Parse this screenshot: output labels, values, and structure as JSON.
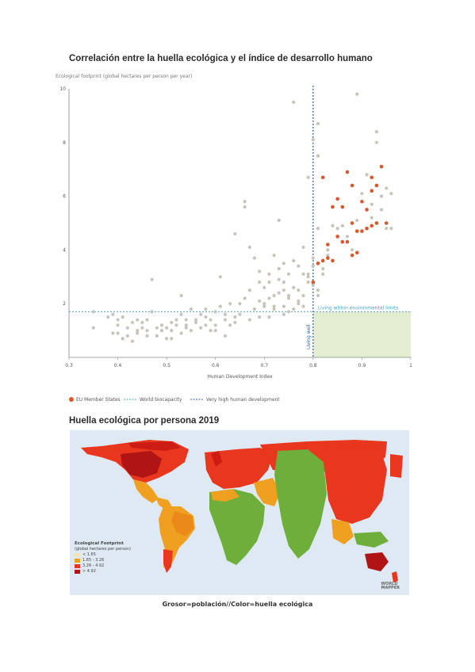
{
  "page": {
    "title_top": "Correlación entre la huella ecológica y el índice de desarrollo humano",
    "title_bottom": "Huella ecológica por persona 2019",
    "caption": "Grosor=población//Color=huella ecológica"
  },
  "chart_data": {
    "type": "scatter",
    "ylabel": "Ecological footprint (global hectares per person per year)",
    "xlabel": "Human Development Index",
    "xlim": [
      0.3,
      1.0
    ],
    "ylim": [
      0,
      10
    ],
    "xticks": [
      "0.3",
      "0.4",
      "0.5",
      "0.6",
      "0.7",
      "0.8",
      "0.9",
      "1"
    ],
    "yticks": [
      "2",
      "4",
      "6",
      "8",
      "10"
    ],
    "grid": false,
    "legend_position": "bottom",
    "legend": [
      {
        "label": "EU Member States",
        "kind": "dot",
        "color": "#d9572a"
      },
      {
        "label": "World biocapacity",
        "kind": "line-light",
        "color": "#4aa3c8"
      },
      {
        "label": "Very high human development",
        "kind": "line-dark",
        "color": "#2a5ea8"
      }
    ],
    "annotations": {
      "zone_label": "Living within environmental limits",
      "zone_label_vertical": "Living well",
      "biocapacity": 1.7,
      "hdi_threshold": 0.8
    },
    "colors": {
      "others": "#c8c3bb",
      "eu": "#d9572a",
      "zone": "#e3edd2",
      "biocap_line": "#4aa3c8",
      "hdi_line": "#2a5ea8"
    },
    "series": [
      {
        "name": "EU Member States",
        "points": [
          [
            0.8,
            2.8
          ],
          [
            0.81,
            3.5
          ],
          [
            0.82,
            3.6
          ],
          [
            0.83,
            3.7
          ],
          [
            0.84,
            3.6
          ],
          [
            0.85,
            4.5
          ],
          [
            0.86,
            4.3
          ],
          [
            0.87,
            4.3
          ],
          [
            0.88,
            3.8
          ],
          [
            0.88,
            5.0
          ],
          [
            0.89,
            4.7
          ],
          [
            0.9,
            4.7
          ],
          [
            0.91,
            4.8
          ],
          [
            0.91,
            5.5
          ],
          [
            0.92,
            6.2
          ],
          [
            0.92,
            6.7
          ],
          [
            0.93,
            5.0
          ],
          [
            0.94,
            7.1
          ],
          [
            0.95,
            5.0
          ],
          [
            0.87,
            6.9
          ],
          [
            0.86,
            5.6
          ],
          [
            0.84,
            5.6
          ],
          [
            0.83,
            4.2
          ],
          [
            0.82,
            6.7
          ],
          [
            0.9,
            5.8
          ],
          [
            0.93,
            6.4
          ],
          [
            0.89,
            3.9
          ],
          [
            0.85,
            5.9
          ],
          [
            0.88,
            6.4
          ],
          [
            0.92,
            4.9
          ]
        ]
      },
      {
        "points": [
          [
            0.35,
            1.7
          ],
          [
            0.35,
            1.1
          ],
          [
            0.38,
            1.5
          ],
          [
            0.39,
            1.6
          ],
          [
            0.4,
            0.9
          ],
          [
            0.4,
            1.2
          ],
          [
            0.41,
            1.5
          ],
          [
            0.41,
            0.7
          ],
          [
            0.42,
            1.1
          ],
          [
            0.42,
            0.8
          ],
          [
            0.43,
            1.3
          ],
          [
            0.43,
            0.6
          ],
          [
            0.44,
            1.4
          ],
          [
            0.44,
            0.9
          ],
          [
            0.45,
            1.1
          ],
          [
            0.45,
            1.3
          ],
          [
            0.46,
            1.0
          ],
          [
            0.46,
            0.8
          ],
          [
            0.47,
            1.7
          ],
          [
            0.47,
            2.9
          ],
          [
            0.48,
            1.1
          ],
          [
            0.48,
            0.8
          ],
          [
            0.49,
            1.2
          ],
          [
            0.49,
            1.0
          ],
          [
            0.5,
            1.1
          ],
          [
            0.5,
            0.7
          ],
          [
            0.51,
            1.0
          ],
          [
            0.51,
            1.3
          ],
          [
            0.52,
            1.2
          ],
          [
            0.52,
            1.4
          ],
          [
            0.53,
            2.3
          ],
          [
            0.53,
            1.6
          ],
          [
            0.54,
            1.4
          ],
          [
            0.54,
            1.1
          ],
          [
            0.55,
            1.8
          ],
          [
            0.55,
            1.0
          ],
          [
            0.56,
            1.3
          ],
          [
            0.57,
            1.6
          ],
          [
            0.58,
            1.2
          ],
          [
            0.58,
            1.8
          ],
          [
            0.59,
            1.4
          ],
          [
            0.59,
            1.0
          ],
          [
            0.6,
            1.2
          ],
          [
            0.6,
            1.7
          ],
          [
            0.61,
            1.9
          ],
          [
            0.61,
            3.0
          ],
          [
            0.62,
            1.6
          ],
          [
            0.62,
            1.4
          ],
          [
            0.63,
            2.0
          ],
          [
            0.63,
            1.2
          ],
          [
            0.64,
            1.3
          ],
          [
            0.64,
            4.6
          ],
          [
            0.65,
            1.6
          ],
          [
            0.65,
            2.0
          ],
          [
            0.66,
            5.8
          ],
          [
            0.66,
            5.6
          ],
          [
            0.67,
            1.4
          ],
          [
            0.68,
            1.8
          ],
          [
            0.68,
            3.7
          ],
          [
            0.69,
            2.8
          ],
          [
            0.69,
            1.5
          ],
          [
            0.7,
            1.9
          ],
          [
            0.7,
            2.0
          ],
          [
            0.71,
            2.2
          ],
          [
            0.71,
            1.5
          ],
          [
            0.72,
            2.3
          ],
          [
            0.72,
            1.8
          ],
          [
            0.73,
            5.1
          ],
          [
            0.73,
            3.3
          ],
          [
            0.74,
            1.9
          ],
          [
            0.74,
            2.8
          ],
          [
            0.75,
            2.3
          ],
          [
            0.75,
            1.7
          ],
          [
            0.76,
            2.6
          ],
          [
            0.76,
            3.6
          ],
          [
            0.77,
            2.5
          ],
          [
            0.77,
            2.0
          ],
          [
            0.78,
            3.1
          ],
          [
            0.78,
            1.9
          ],
          [
            0.79,
            2.8
          ],
          [
            0.79,
            3.1
          ],
          [
            0.8,
            3.4
          ],
          [
            0.8,
            2.7
          ],
          [
            0.81,
            2.3
          ],
          [
            0.81,
            4.8
          ],
          [
            0.82,
            3.3
          ],
          [
            0.83,
            3.8
          ],
          [
            0.84,
            4.9
          ],
          [
            0.72,
            3.8
          ],
          [
            0.74,
            3.5
          ],
          [
            0.78,
            4.1
          ],
          [
            0.75,
            2.2
          ],
          [
            0.77,
            3.4
          ],
          [
            0.69,
            3.2
          ],
          [
            0.7,
            2.6
          ],
          [
            0.71,
            3.1
          ],
          [
            0.76,
            9.5
          ],
          [
            0.79,
            6.7
          ],
          [
            0.81,
            7.5
          ],
          [
            0.81,
            8.7
          ],
          [
            0.8,
            8.1
          ],
          [
            0.85,
            4.8
          ],
          [
            0.86,
            4.9
          ],
          [
            0.87,
            4.5
          ],
          [
            0.88,
            4.0
          ],
          [
            0.89,
            5.1
          ],
          [
            0.9,
            6.1
          ],
          [
            0.91,
            6.8
          ],
          [
            0.92,
            5.2
          ],
          [
            0.93,
            8.4
          ],
          [
            0.93,
            8.0
          ],
          [
            0.94,
            6.0
          ],
          [
            0.95,
            6.3
          ],
          [
            0.96,
            6.1
          ],
          [
            0.96,
            4.8
          ],
          [
            0.83,
            4.0
          ],
          [
            0.82,
            3.1
          ],
          [
            0.81,
            2.5
          ],
          [
            0.78,
            2.3
          ],
          [
            0.67,
            4.1
          ],
          [
            0.66,
            2.2
          ],
          [
            0.89,
            9.8
          ],
          [
            0.92,
            5.7
          ],
          [
            0.95,
            4.8
          ],
          [
            0.94,
            5.5
          ],
          [
            0.72,
            1.9
          ],
          [
            0.73,
            2.4
          ],
          [
            0.74,
            1.6
          ],
          [
            0.57,
            1.1
          ],
          [
            0.56,
            1.4
          ],
          [
            0.6,
            1.0
          ],
          [
            0.58,
            1.5
          ],
          [
            0.62,
            0.8
          ],
          [
            0.46,
            1.4
          ],
          [
            0.44,
            1.0
          ],
          [
            0.4,
            1.4
          ],
          [
            0.39,
            0.9
          ],
          [
            0.51,
            0.7
          ],
          [
            0.53,
            0.9
          ],
          [
            0.54,
            1.2
          ],
          [
            0.64,
            1.5
          ],
          [
            0.67,
            2.5
          ],
          [
            0.69,
            2.1
          ],
          [
            0.71,
            2.8
          ],
          [
            0.73,
            2.9
          ],
          [
            0.75,
            3.1
          ],
          [
            0.77,
            2.1
          ],
          [
            0.79,
            3.0
          ],
          [
            0.8,
            3.7
          ],
          [
            0.76,
            1.8
          ],
          [
            0.74,
            2.5
          ]
        ]
      }
    ]
  },
  "map": {
    "legend_title": "Ecological Footprint",
    "legend_subtitle": "(global hectares per person)",
    "legend_items": [
      {
        "label": "< 1.65",
        "color": "#f3e3b0"
      },
      {
        "label": "1.65 - 3.26",
        "color": "#f0a020"
      },
      {
        "label": "3.26 - 4.92",
        "color": "#e8371e"
      },
      {
        "label": "> 4.92",
        "color": "#b01414"
      }
    ],
    "logo_line1": "WORLD",
    "logo_line2": "MAPPER"
  }
}
